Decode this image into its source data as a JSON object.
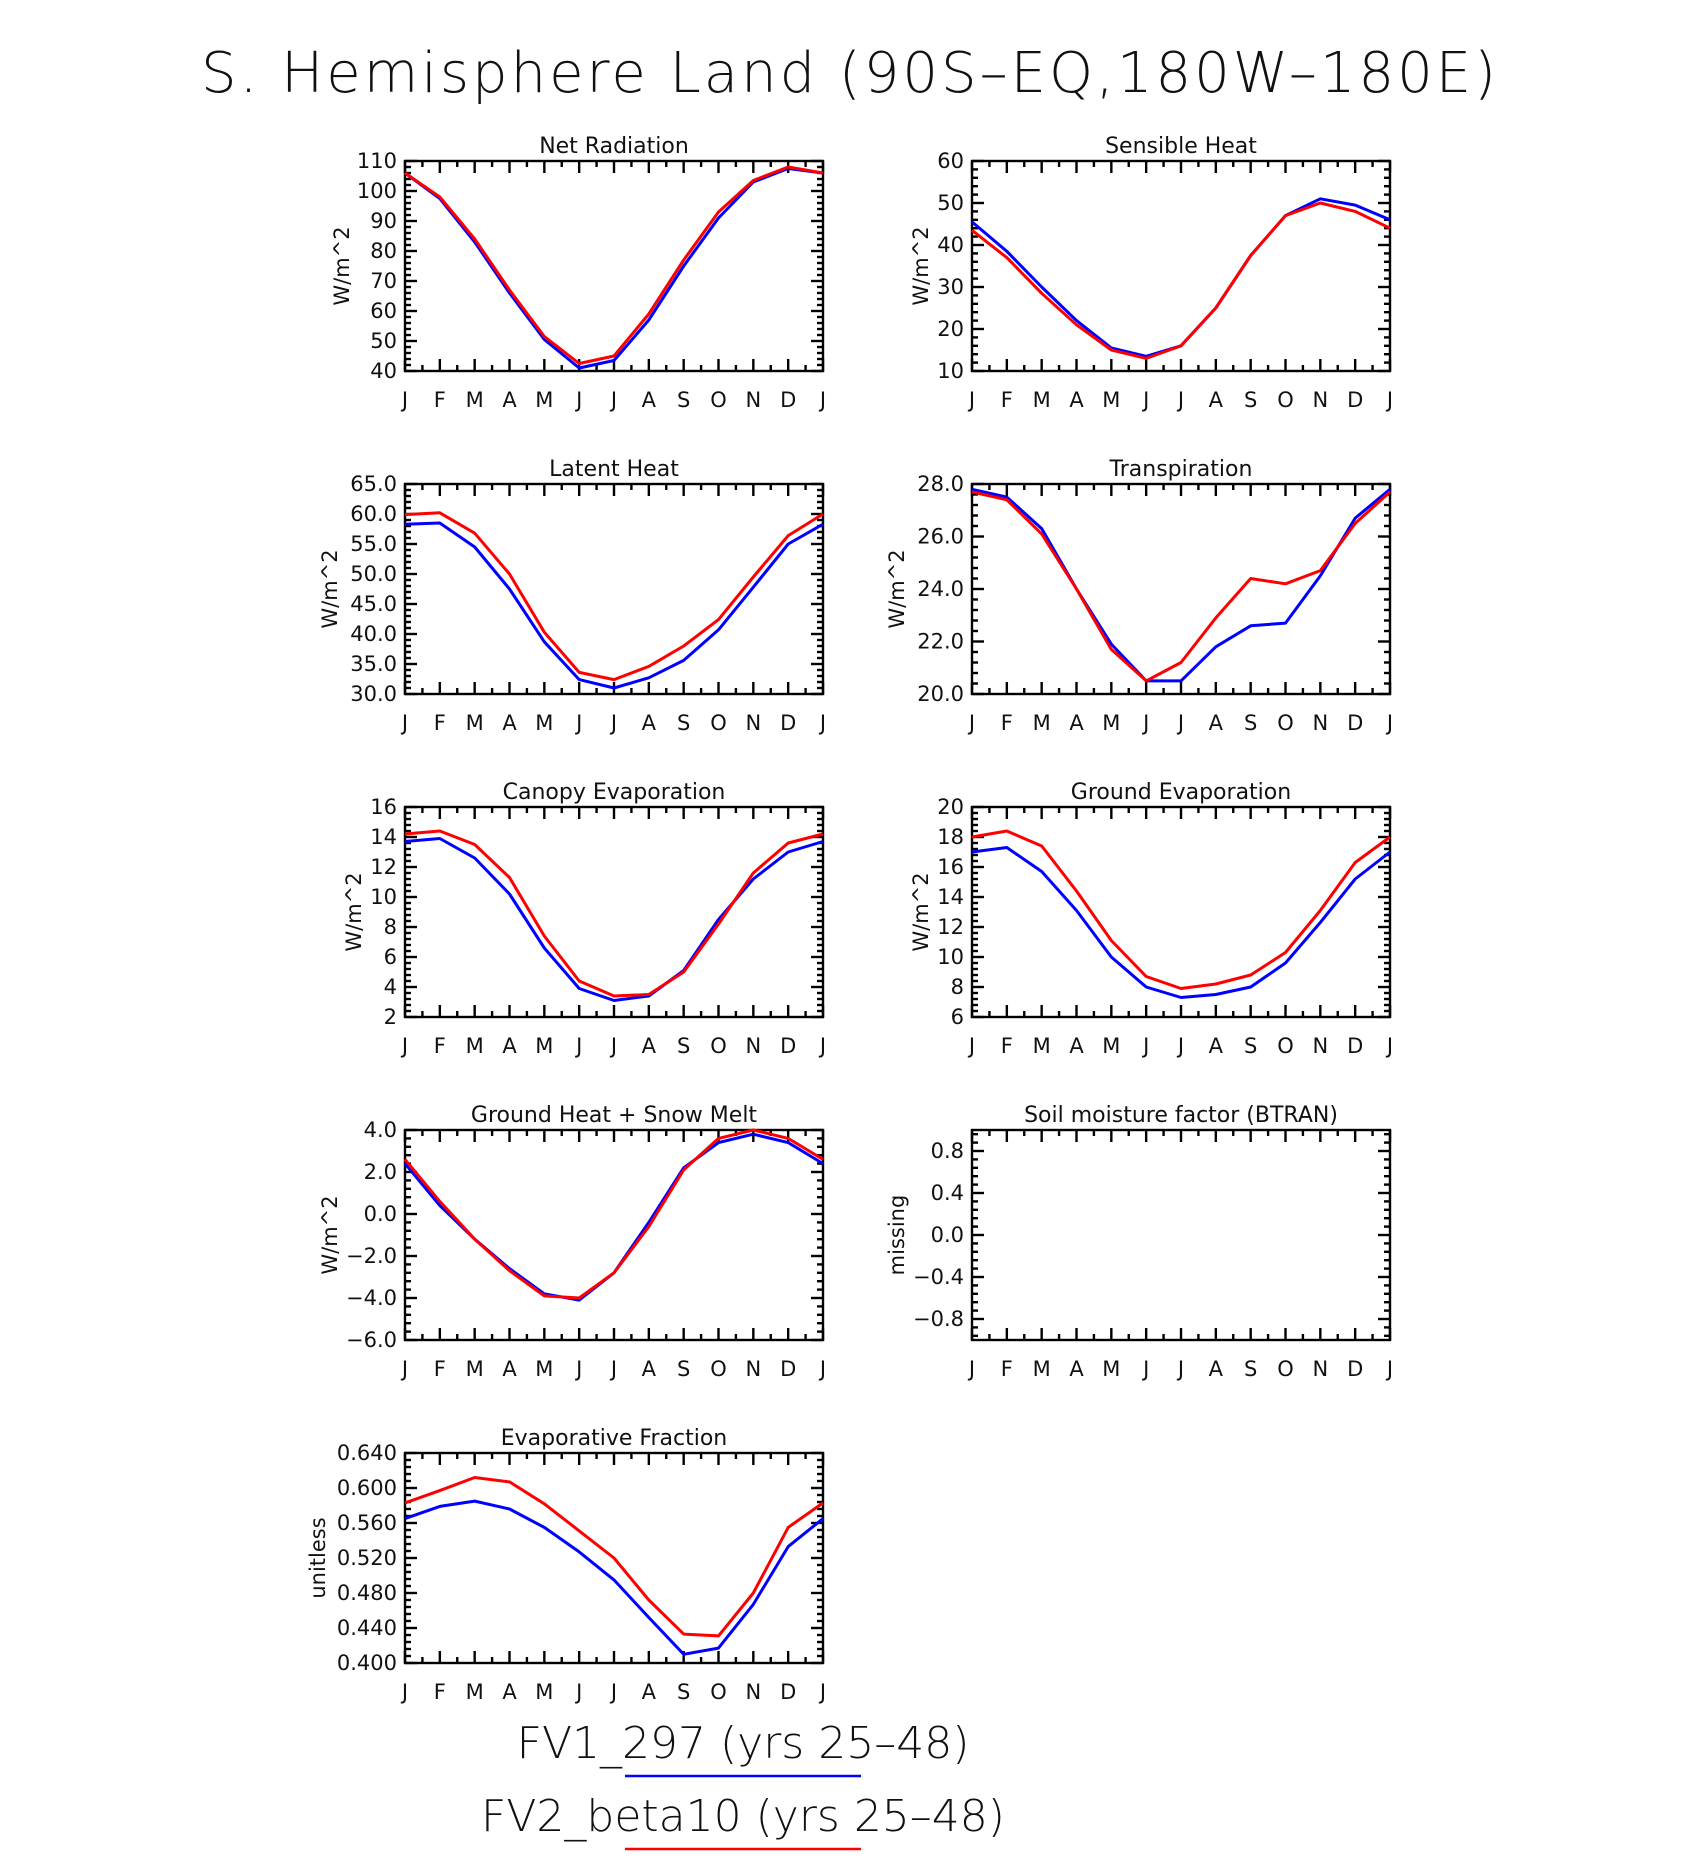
{
  "title": "S. Hemisphere Land (90S–EQ,180W–180E)",
  "months": [
    "J",
    "F",
    "M",
    "A",
    "M",
    "J",
    "J",
    "A",
    "S",
    "O",
    "N",
    "D",
    "J"
  ],
  "legend": [
    {
      "name": "FV1_297 (yrs 25–48)",
      "color": "#0000ff"
    },
    {
      "name": "FV2_beta10 (yrs 25–48)",
      "color": "#ff0000"
    }
  ],
  "chart_data": [
    {
      "type": "line",
      "title": "Net Radiation",
      "ylabel": "W/m^2",
      "ylim": [
        40,
        110
      ],
      "yticks": [
        "40",
        "50",
        "60",
        "70",
        "80",
        "90",
        "100",
        "110"
      ],
      "series": [
        {
          "name": "FV1_297 (yrs 25–48)",
          "color": "#0000ff",
          "values": [
            106,
            97.5,
            83,
            66,
            50.5,
            41,
            43.5,
            57,
            75,
            91,
            103,
            107.5,
            106
          ]
        },
        {
          "name": "FV2_beta10 (yrs 25–48)",
          "color": "#ff0000",
          "values": [
            106,
            98,
            84,
            67,
            51.5,
            42.5,
            45,
            59,
            77,
            93,
            103.5,
            108,
            106
          ]
        }
      ]
    },
    {
      "type": "line",
      "title": "Sensible Heat",
      "ylabel": "W/m^2",
      "ylim": [
        10,
        60
      ],
      "yticks": [
        "10",
        "20",
        "30",
        "40",
        "50",
        "60"
      ],
      "series": [
        {
          "name": "FV1_297 (yrs 25–48)",
          "color": "#0000ff",
          "values": [
            45.5,
            38.5,
            30,
            22,
            15.5,
            13.5,
            16,
            25,
            37.5,
            47,
            51,
            49.5,
            46
          ]
        },
        {
          "name": "FV2_beta10 (yrs 25–48)",
          "color": "#ff0000",
          "values": [
            43.5,
            37,
            28.5,
            21,
            15,
            13,
            16,
            25,
            37.5,
            47,
            50,
            48,
            44
          ]
        }
      ]
    },
    {
      "type": "line",
      "title": "Latent Heat",
      "ylabel": "W/m^2",
      "ylim": [
        30,
        65
      ],
      "yticks": [
        "30.0",
        "35.0",
        "40.0",
        "45.0",
        "50.0",
        "55.0",
        "60.0",
        "65.0"
      ],
      "series": [
        {
          "name": "FV1_297 (yrs 25–48)",
          "color": "#0000ff",
          "values": [
            58.3,
            58.5,
            54.5,
            47.5,
            38.7,
            32.4,
            31,
            32.7,
            35.6,
            40.7,
            47.8,
            55,
            58.3
          ]
        },
        {
          "name": "FV2_beta10 (yrs 25–48)",
          "color": "#ff0000",
          "values": [
            59.9,
            60.2,
            56.8,
            50,
            40.3,
            33.6,
            32.4,
            34.6,
            38,
            42.4,
            49.5,
            56.4,
            60
          ]
        }
      ]
    },
    {
      "type": "line",
      "title": "Transpiration",
      "ylabel": "W/m^2",
      "ylim": [
        20,
        28
      ],
      "yticks": [
        "20.0",
        "22.0",
        "24.0",
        "26.0",
        "28.0"
      ],
      "series": [
        {
          "name": "FV1_297 (yrs 25–48)",
          "color": "#0000ff",
          "values": [
            27.8,
            27.5,
            26.3,
            24,
            21.9,
            20.5,
            20.5,
            21.8,
            22.6,
            22.7,
            24.5,
            26.7,
            27.8
          ]
        },
        {
          "name": "FV2_beta10 (yrs 25–48)",
          "color": "#ff0000",
          "values": [
            27.7,
            27.4,
            26.1,
            24,
            21.7,
            20.5,
            21.2,
            22.9,
            24.4,
            24.2,
            24.7,
            26.5,
            27.7
          ]
        }
      ]
    },
    {
      "type": "line",
      "title": "Canopy Evaporation",
      "ylabel": "W/m^2",
      "ylim": [
        2,
        16
      ],
      "yticks": [
        "2",
        "4",
        "6",
        "8",
        "10",
        "12",
        "14",
        "16"
      ],
      "series": [
        {
          "name": "FV1_297 (yrs 25–48)",
          "color": "#0000ff",
          "values": [
            13.7,
            13.9,
            12.6,
            10.2,
            6.6,
            3.9,
            3.1,
            3.4,
            5.1,
            8.5,
            11.2,
            13,
            13.7
          ]
        },
        {
          "name": "FV2_beta10 (yrs 25–48)",
          "color": "#ff0000",
          "values": [
            14.2,
            14.4,
            13.5,
            11.3,
            7.4,
            4.4,
            3.4,
            3.5,
            5,
            8.2,
            11.6,
            13.6,
            14.2
          ]
        }
      ]
    },
    {
      "type": "line",
      "title": "Ground Evaporation",
      "ylabel": "W/m^2",
      "ylim": [
        6,
        20
      ],
      "yticks": [
        "6",
        "8",
        "10",
        "12",
        "14",
        "16",
        "18",
        "20"
      ],
      "series": [
        {
          "name": "FV1_297 (yrs 25–48)",
          "color": "#0000ff",
          "values": [
            17,
            17.3,
            15.7,
            13.1,
            10,
            8,
            7.3,
            7.5,
            8,
            9.6,
            12.3,
            15.2,
            17
          ]
        },
        {
          "name": "FV2_beta10 (yrs 25–48)",
          "color": "#ff0000",
          "values": [
            18,
            18.4,
            17.4,
            14.4,
            11.1,
            8.7,
            7.9,
            8.2,
            8.8,
            10.3,
            13.1,
            16.3,
            18
          ]
        }
      ]
    },
    {
      "type": "line",
      "title": "Ground Heat + Snow Melt",
      "ylabel": "W/m^2",
      "ylim": [
        -6,
        4
      ],
      "yticks": [
        "−6.0",
        "−4.0",
        "−2.0",
        "0.0",
        "2.0",
        "4.0"
      ],
      "series": [
        {
          "name": "FV1_297 (yrs 25–48)",
          "color": "#0000ff",
          "values": [
            2.4,
            0.4,
            -1.2,
            -2.6,
            -3.8,
            -4.1,
            -2.8,
            -0.4,
            2.2,
            3.4,
            3.8,
            3.4,
            2.4
          ]
        },
        {
          "name": "FV2_beta10 (yrs 25–48)",
          "color": "#ff0000",
          "values": [
            2.6,
            0.6,
            -1.2,
            -2.7,
            -3.9,
            -4,
            -2.8,
            -0.6,
            2.1,
            3.6,
            4,
            3.6,
            2.6
          ]
        }
      ]
    },
    {
      "type": "line",
      "title": "Soil moisture factor (BTRAN)",
      "ylabel": "missing",
      "ylim": [
        -1,
        1
      ],
      "yticks": [
        "−0.8",
        "−0.4",
        "0.0",
        "0.4",
        "0.8"
      ],
      "series": []
    },
    {
      "type": "line",
      "title": "Evaporative Fraction",
      "ylabel": "unitless",
      "ylim": [
        0.4,
        0.64
      ],
      "yticks": [
        "0.400",
        "0.440",
        "0.480",
        "0.520",
        "0.560",
        "0.600",
        "0.640"
      ],
      "series": [
        {
          "name": "FV1_297 (yrs 25–48)",
          "color": "#0000ff",
          "values": [
            0.565,
            0.579,
            0.585,
            0.576,
            0.555,
            0.527,
            0.495,
            0.452,
            0.41,
            0.417,
            0.467,
            0.533,
            0.565
          ]
        },
        {
          "name": "FV2_beta10 (yrs 25–48)",
          "color": "#ff0000",
          "values": [
            0.583,
            0.597,
            0.612,
            0.607,
            0.582,
            0.551,
            0.52,
            0.472,
            0.433,
            0.431,
            0.48,
            0.555,
            0.583
          ]
        }
      ]
    }
  ]
}
